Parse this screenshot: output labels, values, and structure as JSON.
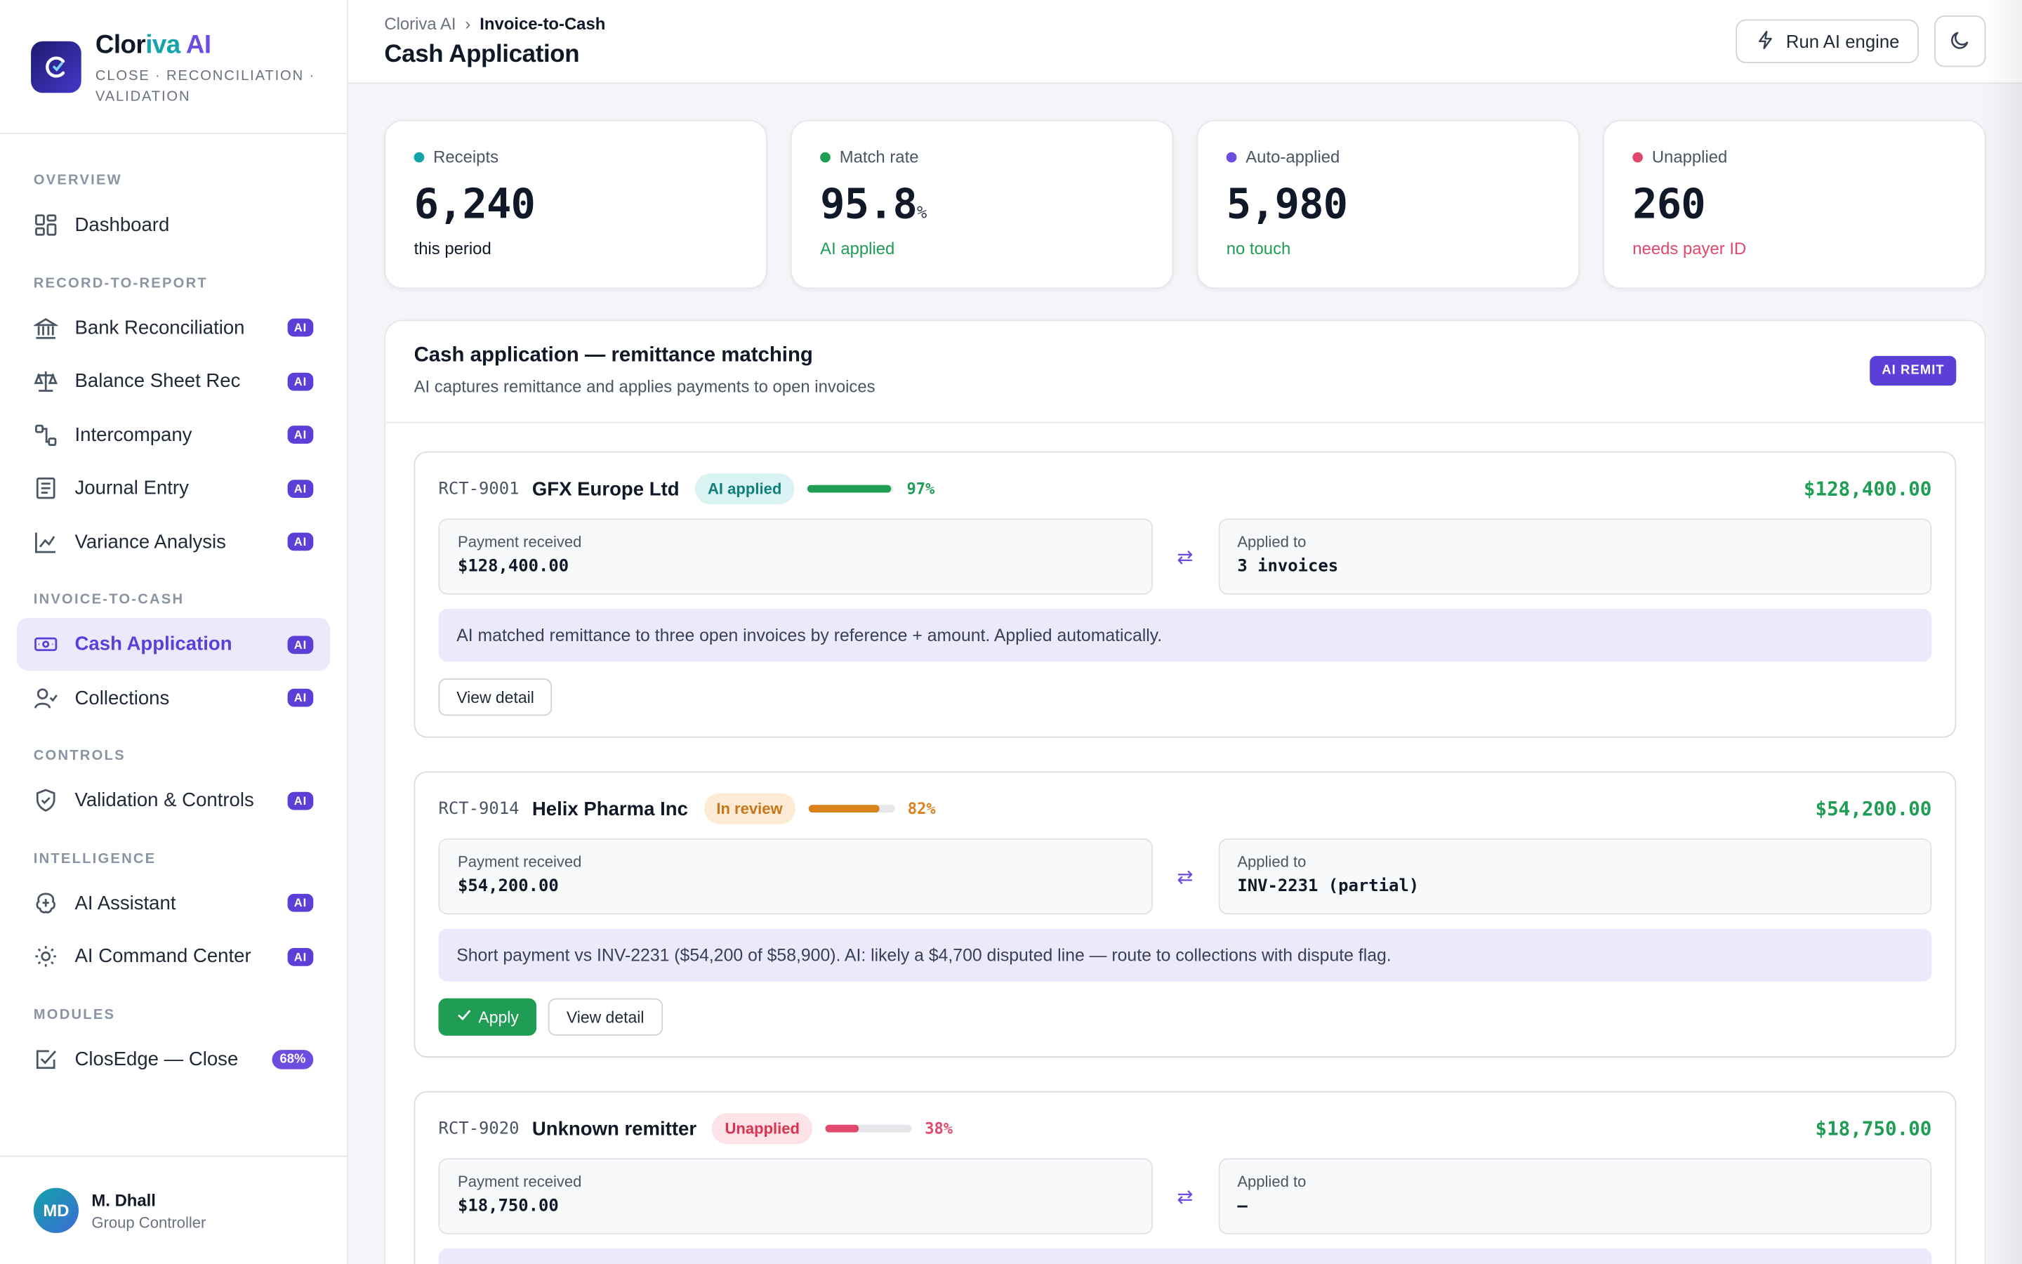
{
  "brand": {
    "name_part1": "Clor",
    "name_part2": "iva",
    "name_part3": " AI",
    "tagline": "CLOSE · RECONCILIATION · VALIDATION"
  },
  "nav": {
    "sections": [
      {
        "title": "OVERVIEW",
        "items": [
          {
            "label": "Dashboard",
            "icon": "grid-icon",
            "badge": ""
          }
        ]
      },
      {
        "title": "RECORD-TO-REPORT",
        "items": [
          {
            "label": "Bank Reconciliation",
            "icon": "bank-icon",
            "badge": "AI"
          },
          {
            "label": "Balance Sheet Rec",
            "icon": "scale-icon",
            "badge": "AI"
          },
          {
            "label": "Intercompany",
            "icon": "link-icon",
            "badge": "AI"
          },
          {
            "label": "Journal Entry",
            "icon": "journal-icon",
            "badge": "AI"
          },
          {
            "label": "Variance Analysis",
            "icon": "chart-icon",
            "badge": "AI"
          }
        ]
      },
      {
        "title": "INVOICE-TO-CASH",
        "items": [
          {
            "label": "Cash Application",
            "icon": "cash-icon",
            "badge": "AI",
            "active": true
          },
          {
            "label": "Collections",
            "icon": "user-check-icon",
            "badge": "AI"
          }
        ]
      },
      {
        "title": "CONTROLS",
        "items": [
          {
            "label": "Validation & Controls",
            "icon": "shield-icon",
            "badge": "AI"
          }
        ]
      },
      {
        "title": "INTELLIGENCE",
        "items": [
          {
            "label": "AI Assistant",
            "icon": "brain-icon",
            "badge": "AI"
          },
          {
            "label": "AI Command Center",
            "icon": "sun-icon",
            "badge": "AI"
          }
        ]
      },
      {
        "title": "MODULES",
        "items": [
          {
            "label": "ClosEdge — Close",
            "icon": "checkbox-icon",
            "badge": "68%"
          }
        ]
      }
    ]
  },
  "user": {
    "initials": "MD",
    "name": "M. Dhall",
    "role": "Group Controller"
  },
  "header": {
    "breadcrumb_root": "Cloriva AI",
    "breadcrumb_sep": "›",
    "breadcrumb_current": "Invoice-to-Cash",
    "title": "Cash Application",
    "run_button": "Run AI engine"
  },
  "stats": [
    {
      "label": "Receipts",
      "value": "6,240",
      "unit": "",
      "sub": "this period",
      "color": "#14a3a8",
      "sub_color": "#111827"
    },
    {
      "label": "Match rate",
      "value": "95.8",
      "unit": "%",
      "sub": "AI applied",
      "color": "#1f9d55",
      "sub_color": "#1f9d55"
    },
    {
      "label": "Auto-applied",
      "value": "5,980",
      "unit": "",
      "sub": "no touch",
      "color": "#6d4ce0",
      "sub_color": "#1f9d55"
    },
    {
      "label": "Unapplied",
      "value": "260",
      "unit": "",
      "sub": "needs payer ID",
      "color": "#e0486c",
      "sub_color": "#e0486c"
    }
  ],
  "panel": {
    "title": "Cash application — remittance matching",
    "subtitle": "AI captures remittance and applies payments to open invoices",
    "badge": "AI REMIT",
    "payment_label": "Payment received",
    "applied_label": "Applied to",
    "view_detail": "View detail",
    "apply": "Apply"
  },
  "receipts": [
    {
      "id": "RCT-9001",
      "name": "GFX Europe Ltd",
      "status": "AI applied",
      "status_bg": "#d8f3f1",
      "status_fg": "#0f7f7c",
      "confidence": 97,
      "conf_label": "97%",
      "conf_color": "#1f9d55",
      "amount": "$128,400.00",
      "payment": "$128,400.00",
      "applied_to": "3 invoices",
      "note": "AI matched remittance to three open invoices by reference + amount. Applied automatically.",
      "show_apply": false
    },
    {
      "id": "RCT-9014",
      "name": "Helix Pharma Inc",
      "status": "In review",
      "status_bg": "#fdebd6",
      "status_fg": "#c7761a",
      "confidence": 82,
      "conf_label": "82%",
      "conf_color": "#d9821c",
      "amount": "$54,200.00",
      "payment": "$54,200.00",
      "applied_to": "INV-2231 (partial)",
      "note": "Short payment vs INV-2231 ($54,200 of $58,900). AI: likely a $4,700 disputed line — route to collections with dispute flag.",
      "show_apply": true
    },
    {
      "id": "RCT-9020",
      "name": "Unknown remitter",
      "status": "Unapplied",
      "status_bg": "#fde2e7",
      "status_fg": "#d9334f",
      "confidence": 38,
      "conf_label": "38%",
      "conf_color": "#e0486c",
      "amount": "$18,750.00",
      "payment": "$18,750.00",
      "applied_to": "—",
      "note": "",
      "show_apply": false
    }
  ]
}
